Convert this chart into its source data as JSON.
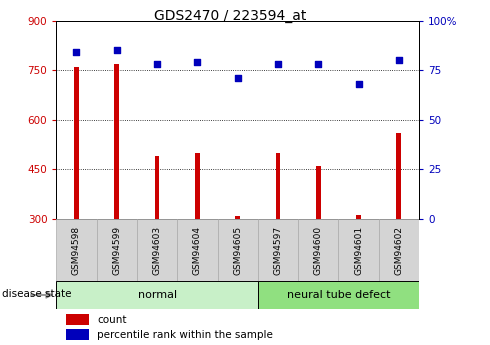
{
  "title": "GDS2470 / 223594_at",
  "samples": [
    "GSM94598",
    "GSM94599",
    "GSM94603",
    "GSM94604",
    "GSM94605",
    "GSM94597",
    "GSM94600",
    "GSM94601",
    "GSM94602"
  ],
  "counts": [
    760,
    770,
    490,
    500,
    310,
    500,
    460,
    313,
    560
  ],
  "percentile_ranks": [
    84,
    85,
    78,
    79,
    71,
    78,
    78,
    68,
    80
  ],
  "groups": [
    {
      "label": "normal",
      "start": 0,
      "end": 4,
      "color": "#c8f0c8"
    },
    {
      "label": "neural tube defect",
      "start": 5,
      "end": 8,
      "color": "#90e080"
    }
  ],
  "ylim_left": [
    300,
    900
  ],
  "ylim_right": [
    0,
    100
  ],
  "yticks_left": [
    300,
    450,
    600,
    750,
    900
  ],
  "yticks_right": [
    0,
    25,
    50,
    75,
    100
  ],
  "bar_color": "#cc0000",
  "dot_color": "#0000bb",
  "bar_bg_color": "#d4d4d4",
  "legend_items": [
    {
      "label": "count",
      "color": "#cc0000"
    },
    {
      "label": "percentile rank within the sample",
      "color": "#0000bb"
    }
  ],
  "disease_state_label": "disease state",
  "bar_bottom": 300,
  "n_samples": 9
}
